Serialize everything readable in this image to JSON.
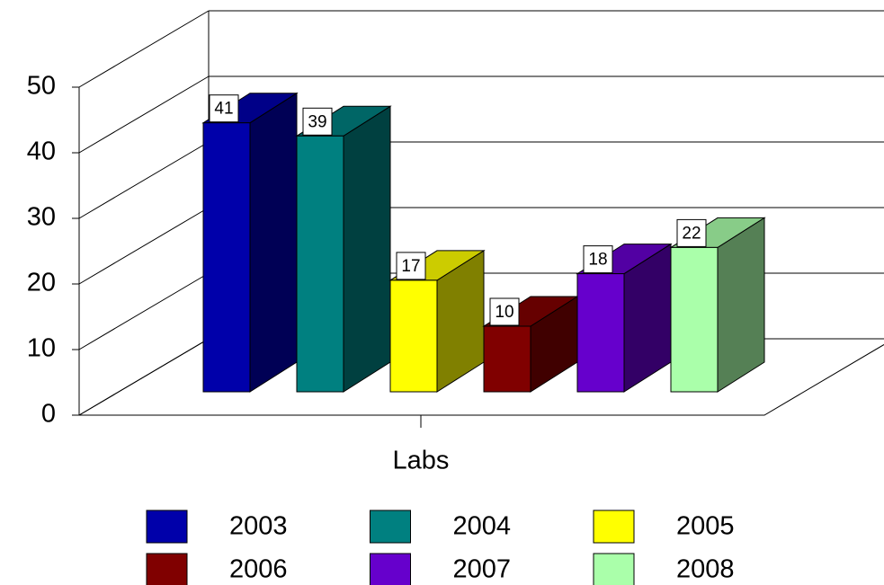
{
  "chart_data": {
    "type": "bar3d",
    "xlabel": "Labs",
    "categories": [
      "Labs"
    ],
    "series": [
      {
        "name": "2003",
        "color": "#0000aa",
        "values": [
          41
        ]
      },
      {
        "name": "2004",
        "color": "#008080",
        "values": [
          39
        ]
      },
      {
        "name": "2005",
        "color": "#ffff00",
        "values": [
          17
        ]
      },
      {
        "name": "2006",
        "color": "#800000",
        "values": [
          10
        ]
      },
      {
        "name": "2007",
        "color": "#6600cc",
        "values": [
          18
        ]
      },
      {
        "name": "2008",
        "color": "#aaffaa",
        "values": [
          22
        ]
      }
    ],
    "ylim": [
      0,
      50
    ],
    "yticks": [
      0,
      10,
      20,
      30,
      40,
      50
    ],
    "grid": true,
    "legend": "bottom"
  }
}
